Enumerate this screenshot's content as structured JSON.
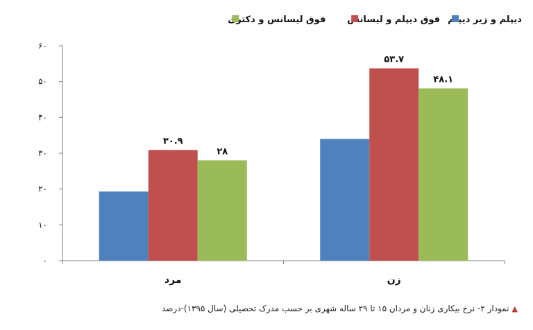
{
  "chart_data": {
    "type": "bar",
    "categories": [
      "مرد",
      "زن"
    ],
    "series": [
      {
        "name": "دیپلم و زیر دیپلم",
        "color": "#4f81bd",
        "values": [
          19.3,
          34.0
        ],
        "labels": [
          "",
          ""
        ]
      },
      {
        "name": "فوق دیپلم و لیسانس",
        "color": "#c0504d",
        "values": [
          30.9,
          53.7
        ],
        "labels": [
          "۳۰.۹",
          "۵۳.۷"
        ]
      },
      {
        "name": "فوق لیسانس و دکتری",
        "color": "#9bbb59",
        "values": [
          28,
          48.1
        ],
        "labels": [
          "۲۸",
          "۴۸.۱"
        ]
      }
    ],
    "ylim": [
      0,
      60
    ],
    "yticks": [
      0,
      10,
      20,
      30,
      40,
      50,
      60
    ],
    "ytick_labels": [
      "۰",
      "۱۰",
      "۲۰",
      "۳۰",
      "۴۰",
      "۵۰",
      "۶۰"
    ],
    "legend_position": "top",
    "grid": false
  },
  "caption": {
    "marker": "triangle-icon",
    "text": "نمودار ۲- نرخ بیکاری زنان و مردان ۱۵ تا ۲۹ ساله شهری بر حسب مدرک تحصیلی (سال ۱۳۹۵)-درصد"
  }
}
